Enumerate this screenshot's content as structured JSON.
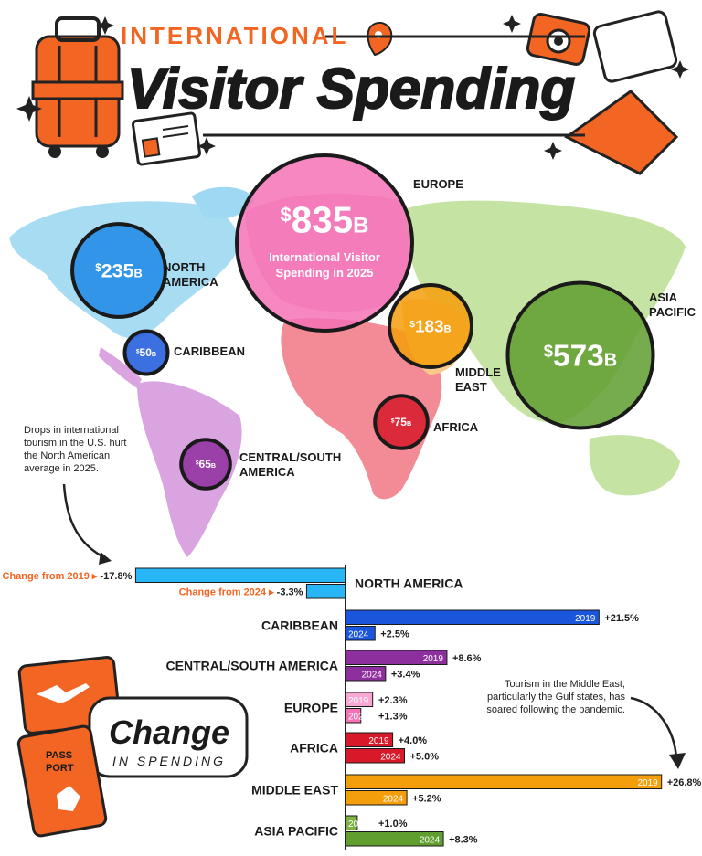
{
  "header": {
    "kicker": "INTERNATIONAL",
    "title": "Visitor Spending"
  },
  "map": {
    "bubbles": [
      {
        "region": "EUROPE",
        "amount": "835",
        "unit": "B",
        "value": 835,
        "caption_line1": "International Visitor",
        "caption_line2": "Spending in 2025",
        "color": "#f472b6"
      },
      {
        "region_line1": "NORTH",
        "region_line2": "AMERICA",
        "amount": "235",
        "unit": "B",
        "value": 235,
        "color": "#1e88e5"
      },
      {
        "region": "CARIBBEAN",
        "amount": "50",
        "unit": "B",
        "value": 50,
        "color": "#1a56db"
      },
      {
        "region_line1": "CENTRAL/SOUTH",
        "region_line2": "AMERICA",
        "amount": "65",
        "unit": "B",
        "value": 65,
        "color": "#8e2f9e"
      },
      {
        "region_line1": "MIDDLE",
        "region_line2": "EAST",
        "amount": "183",
        "unit": "B",
        "value": 183,
        "color": "#f59e0b"
      },
      {
        "region": "AFRICA",
        "amount": "75",
        "unit": "B",
        "value": 75,
        "color": "#d7192a"
      },
      {
        "region_line1": "ASIA",
        "region_line2": "PACIFIC",
        "amount": "573",
        "unit": "B",
        "value": 573,
        "color": "#5f9e2f"
      }
    ],
    "note_left": [
      "Drops in international",
      "tourism in the U.S. hurt",
      "the North American",
      "average in 2025."
    ]
  },
  "change_panel": {
    "title": "Change",
    "subtitle": "IN SPENDING",
    "passport_line1": "PASS",
    "passport_line2": "PORT",
    "note_right": [
      "Tourism in the Middle East,",
      "particularly the Gulf states, has",
      "soared following the pandemic."
    ],
    "na_label_2019": "Change from 2019 ▸",
    "na_label_2024": "Change from 2024 ▸"
  },
  "chart_data": {
    "type": "bar",
    "orientation": "horizontal",
    "value_unit": "%",
    "categories": [
      "NORTH AMERICA",
      "CARIBBEAN",
      "CENTRAL/SOUTH AMERICA",
      "EUROPE",
      "AFRICA",
      "MIDDLE EAST",
      "ASIA PACIFIC"
    ],
    "series": [
      {
        "name": "2019",
        "values": [
          -17.8,
          21.5,
          8.6,
          2.3,
          4.0,
          26.8,
          1.0
        ]
      },
      {
        "name": "2024",
        "values": [
          -3.3,
          2.5,
          3.4,
          1.3,
          5.0,
          5.2,
          8.3
        ]
      }
    ],
    "value_labels": {
      "2019": [
        "-17.8%",
        "+21.5%",
        "+8.6%",
        "+2.3%",
        "+4.0%",
        "+26.8%",
        "+1.0%"
      ],
      "2024": [
        "-3.3%",
        "+2.5%",
        "+3.4%",
        "+1.3%",
        "+5.0%",
        "+5.2%",
        "+8.3%"
      ]
    },
    "colors": {
      "NORTH AMERICA": [
        "#29b6f6",
        "#29b6f6"
      ],
      "CARIBBEAN": [
        "#1a56db",
        "#1a56db"
      ],
      "CENTRAL/SOUTH AMERICA": [
        "#8e2f9e",
        "#8e2f9e"
      ],
      "EUROPE": [
        "#f9a8d4",
        "#f472b6"
      ],
      "AFRICA": [
        "#d7192a",
        "#d7192a"
      ],
      "MIDDLE EAST": [
        "#f59e0b",
        "#f59e0b"
      ],
      "ASIA PACIFIC": [
        "#7cb342",
        "#5f9e2f"
      ]
    }
  }
}
